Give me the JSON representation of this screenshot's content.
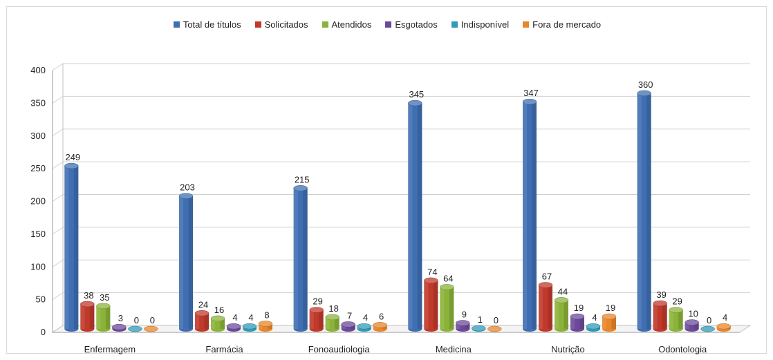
{
  "chart_data": {
    "type": "bar",
    "categories": [
      "Enfermagem",
      "Farmácia",
      "Fonoaudiologia",
      "Medicina",
      "Nutrição",
      "Odontologia"
    ],
    "series": [
      {
        "name": "Total de títulos",
        "color": "#3f6fb2",
        "values": [
          249,
          203,
          215,
          345,
          347,
          360
        ]
      },
      {
        "name": "Solicitados",
        "color": "#c0392b",
        "values": [
          38,
          24,
          29,
          74,
          67,
          39
        ]
      },
      {
        "name": "Atendidos",
        "color": "#8bb339",
        "values": [
          35,
          16,
          18,
          64,
          44,
          29
        ]
      },
      {
        "name": "Esgotados",
        "color": "#6c4a9a",
        "values": [
          3,
          4,
          7,
          9,
          19,
          10
        ]
      },
      {
        "name": "Indisponível",
        "color": "#2f9bb8",
        "values": [
          0,
          4,
          4,
          1,
          4,
          0
        ]
      },
      {
        "name": "Fora de mercado",
        "color": "#e8862a",
        "values": [
          0,
          8,
          6,
          0,
          19,
          4
        ]
      }
    ],
    "ylim": [
      0,
      400
    ],
    "yticks": [
      0,
      50,
      100,
      150,
      200,
      250,
      300,
      350,
      400
    ],
    "legend_position": "top",
    "grid": true
  }
}
